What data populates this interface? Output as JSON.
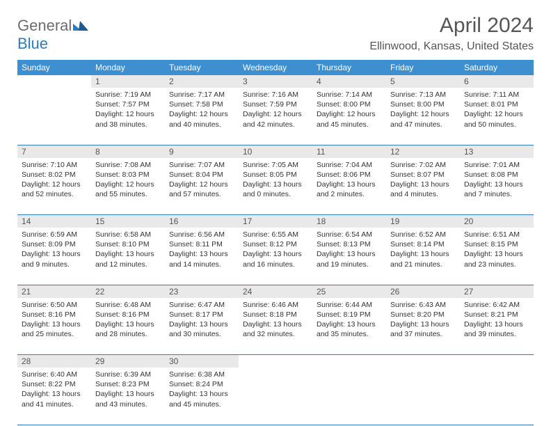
{
  "logo": {
    "text1": "General",
    "text2": "Blue"
  },
  "title": "April 2024",
  "location": "Ellinwood, Kansas, United States",
  "colors": {
    "header_bg": "#3e8fcf",
    "header_text": "#ffffff",
    "daynum_bg": "#e9e9e9",
    "border": "#2f7bbf",
    "logo_grey": "#6d6d6d",
    "logo_blue": "#2f7bbf"
  },
  "dayNames": [
    "Sunday",
    "Monday",
    "Tuesday",
    "Wednesday",
    "Thursday",
    "Friday",
    "Saturday"
  ],
  "weeks": [
    {
      "nums": [
        "",
        "1",
        "2",
        "3",
        "4",
        "5",
        "6"
      ],
      "cells": [
        null,
        {
          "sr": "7:19 AM",
          "ss": "7:57 PM",
          "dl": "12 hours and 38 minutes."
        },
        {
          "sr": "7:17 AM",
          "ss": "7:58 PM",
          "dl": "12 hours and 40 minutes."
        },
        {
          "sr": "7:16 AM",
          "ss": "7:59 PM",
          "dl": "12 hours and 42 minutes."
        },
        {
          "sr": "7:14 AM",
          "ss": "8:00 PM",
          "dl": "12 hours and 45 minutes."
        },
        {
          "sr": "7:13 AM",
          "ss": "8:00 PM",
          "dl": "12 hours and 47 minutes."
        },
        {
          "sr": "7:11 AM",
          "ss": "8:01 PM",
          "dl": "12 hours and 50 minutes."
        }
      ]
    },
    {
      "nums": [
        "7",
        "8",
        "9",
        "10",
        "11",
        "12",
        "13"
      ],
      "cells": [
        {
          "sr": "7:10 AM",
          "ss": "8:02 PM",
          "dl": "12 hours and 52 minutes."
        },
        {
          "sr": "7:08 AM",
          "ss": "8:03 PM",
          "dl": "12 hours and 55 minutes."
        },
        {
          "sr": "7:07 AM",
          "ss": "8:04 PM",
          "dl": "12 hours and 57 minutes."
        },
        {
          "sr": "7:05 AM",
          "ss": "8:05 PM",
          "dl": "13 hours and 0 minutes."
        },
        {
          "sr": "7:04 AM",
          "ss": "8:06 PM",
          "dl": "13 hours and 2 minutes."
        },
        {
          "sr": "7:02 AM",
          "ss": "8:07 PM",
          "dl": "13 hours and 4 minutes."
        },
        {
          "sr": "7:01 AM",
          "ss": "8:08 PM",
          "dl": "13 hours and 7 minutes."
        }
      ]
    },
    {
      "nums": [
        "14",
        "15",
        "16",
        "17",
        "18",
        "19",
        "20"
      ],
      "cells": [
        {
          "sr": "6:59 AM",
          "ss": "8:09 PM",
          "dl": "13 hours and 9 minutes."
        },
        {
          "sr": "6:58 AM",
          "ss": "8:10 PM",
          "dl": "13 hours and 12 minutes."
        },
        {
          "sr": "6:56 AM",
          "ss": "8:11 PM",
          "dl": "13 hours and 14 minutes."
        },
        {
          "sr": "6:55 AM",
          "ss": "8:12 PM",
          "dl": "13 hours and 16 minutes."
        },
        {
          "sr": "6:54 AM",
          "ss": "8:13 PM",
          "dl": "13 hours and 19 minutes."
        },
        {
          "sr": "6:52 AM",
          "ss": "8:14 PM",
          "dl": "13 hours and 21 minutes."
        },
        {
          "sr": "6:51 AM",
          "ss": "8:15 PM",
          "dl": "13 hours and 23 minutes."
        }
      ]
    },
    {
      "nums": [
        "21",
        "22",
        "23",
        "24",
        "25",
        "26",
        "27"
      ],
      "cells": [
        {
          "sr": "6:50 AM",
          "ss": "8:16 PM",
          "dl": "13 hours and 25 minutes."
        },
        {
          "sr": "6:48 AM",
          "ss": "8:16 PM",
          "dl": "13 hours and 28 minutes."
        },
        {
          "sr": "6:47 AM",
          "ss": "8:17 PM",
          "dl": "13 hours and 30 minutes."
        },
        {
          "sr": "6:46 AM",
          "ss": "8:18 PM",
          "dl": "13 hours and 32 minutes."
        },
        {
          "sr": "6:44 AM",
          "ss": "8:19 PM",
          "dl": "13 hours and 35 minutes."
        },
        {
          "sr": "6:43 AM",
          "ss": "8:20 PM",
          "dl": "13 hours and 37 minutes."
        },
        {
          "sr": "6:42 AM",
          "ss": "8:21 PM",
          "dl": "13 hours and 39 minutes."
        }
      ]
    },
    {
      "nums": [
        "28",
        "29",
        "30",
        "",
        "",
        "",
        ""
      ],
      "cells": [
        {
          "sr": "6:40 AM",
          "ss": "8:22 PM",
          "dl": "13 hours and 41 minutes."
        },
        {
          "sr": "6:39 AM",
          "ss": "8:23 PM",
          "dl": "13 hours and 43 minutes."
        },
        {
          "sr": "6:38 AM",
          "ss": "8:24 PM",
          "dl": "13 hours and 45 minutes."
        },
        null,
        null,
        null,
        null
      ]
    }
  ],
  "labels": {
    "sunrise": "Sunrise:",
    "sunset": "Sunset:",
    "daylight": "Daylight:"
  }
}
